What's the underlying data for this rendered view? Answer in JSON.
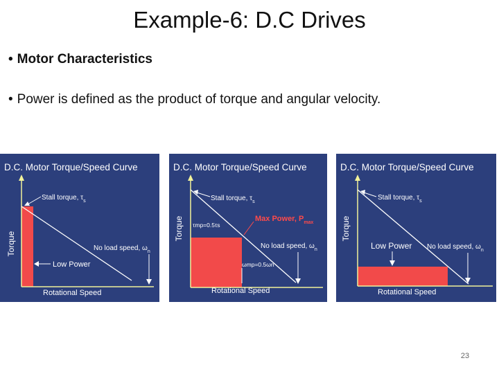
{
  "slide": {
    "title": "Example-6: D.C Drives",
    "bullets": [
      {
        "marker": "•",
        "text": "Motor Characteristics"
      },
      {
        "marker": "•",
        "text": "Power is defined as the product of torque and angular velocity."
      }
    ],
    "page_number": "23"
  },
  "panels": [
    {
      "heading": "D.C. Motor Torque/Speed Curve",
      "ylabel": "Torque",
      "xlabel": "Rotational Speed",
      "stall_label": "Stall torque, τ",
      "stall_sub": "s",
      "noload_label": "No load speed, ω",
      "noload_sub": "n",
      "annotation": "Low Power"
    },
    {
      "heading": "D.C. Motor Torque/Speed Curve",
      "ylabel": "Torque",
      "xlabel": "Rotational Speed",
      "stall_label": "Stall torque, τ",
      "stall_sub": "s",
      "noload_label": "No load speed, ω",
      "noload_sub": "n",
      "annotation": "Max Power, P",
      "annotation_sub": "max",
      "tau_mp": "τmp=0.5τs",
      "omega_mp": "ωmp=0.5ωn"
    },
    {
      "heading": "D.C. Motor Torque/Speed Curve",
      "ylabel": "Torque",
      "xlabel": "Rotational Speed",
      "stall_label": "Stall torque, τ",
      "stall_sub": "s",
      "noload_label": "No load speed, ω",
      "noload_sub": "n",
      "annotation": "Low Power"
    }
  ],
  "colors": {
    "panel_bg": "#2c3f7c",
    "axis": "#f2f29a",
    "line": "#ffffff",
    "fill": "#f24a4a",
    "text": "#ffffff",
    "max_power": "#ff4a4a"
  }
}
